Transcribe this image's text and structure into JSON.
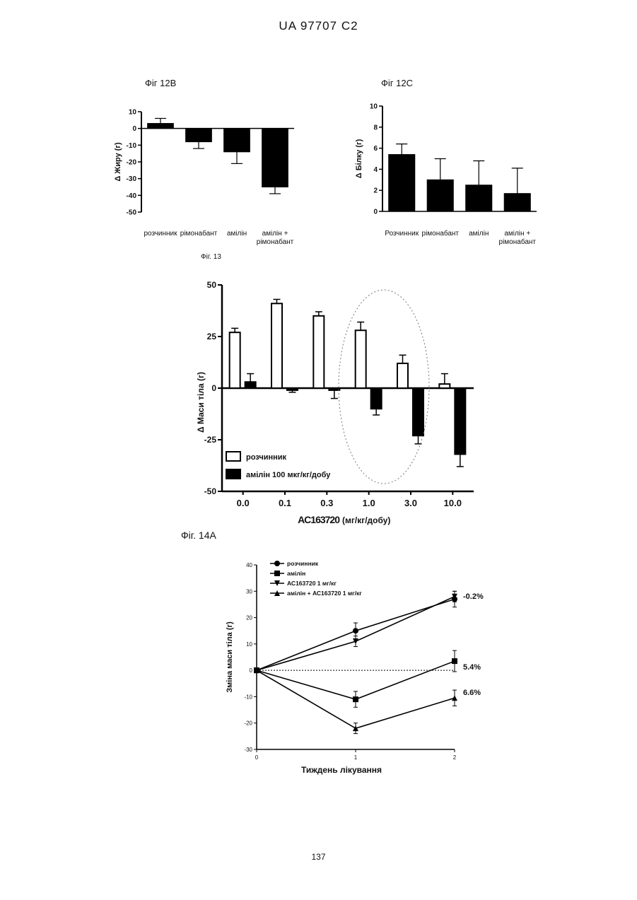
{
  "header": {
    "title": "UA   97707   C2"
  },
  "figure_labels": {
    "fig12b": "Фіг  12В",
    "fig12c": "Фіг  12С",
    "fig13": "Фіг. 13",
    "fig14a": "Фіг. 14А"
  },
  "page_number": "137",
  "chart_data": [
    {
      "id": "fig12b",
      "type": "bar",
      "ylabel": "Δ  Жиру (г)",
      "ylim": [
        -50,
        10
      ],
      "yticks": [
        10,
        0,
        -10,
        -20,
        -30,
        -40,
        -50
      ],
      "category_labels": [
        [
          "розчинник"
        ],
        [
          "рімонабант"
        ],
        [
          "амілін"
        ],
        [
          "амілін +",
          "рімонабант"
        ]
      ],
      "values": [
        3,
        -8,
        -14,
        -35
      ],
      "errors": [
        3,
        4,
        7,
        4
      ],
      "color": "#000000"
    },
    {
      "id": "fig12c",
      "type": "bar",
      "ylabel": "Δ  Білку (г)",
      "ylim": [
        0,
        10
      ],
      "yticks": [
        10,
        8,
        6,
        4,
        2,
        0
      ],
      "category_labels": [
        [
          "Розчинник"
        ],
        [
          "рімонабант"
        ],
        [
          "амілін"
        ],
        [
          "амілін +",
          "рімонабант"
        ]
      ],
      "values": [
        5.4,
        3.0,
        2.5,
        1.7
      ],
      "errors": [
        1.0,
        2.0,
        2.3,
        2.4
      ],
      "color": "#000000"
    },
    {
      "id": "fig13",
      "type": "bar",
      "ylabel": "Δ  Маси тіла (г)",
      "xlabel_main": "AC163720",
      "xlabel_unit": "(мг/кг/добу)",
      "ylim": [
        -50,
        50
      ],
      "yticks": [
        50,
        25,
        0,
        -25,
        -50
      ],
      "categories": [
        "0.0",
        "0.1",
        "0.3",
        "1.0",
        "3.0",
        "10.0"
      ],
      "series": [
        {
          "name": "розчинник",
          "fill": "#ffffff",
          "values": [
            27,
            41,
            35,
            28,
            12,
            2
          ],
          "errors": [
            2,
            2,
            2,
            4,
            4,
            5
          ]
        },
        {
          "name": "амілін 100 мкг/кг/добу",
          "fill": "#000000",
          "values": [
            3,
            -1,
            -1,
            -10,
            -23,
            -32
          ],
          "errors": [
            4,
            1,
            4,
            3,
            4,
            6
          ]
        }
      ]
    },
    {
      "id": "fig14a",
      "type": "line",
      "xlabel": "Тиждень лікування",
      "ylabel": "Зміна маси тіла (г)",
      "ylim": [
        -30,
        40
      ],
      "yticks": [
        40,
        30,
        20,
        10,
        0,
        -10,
        -20,
        -30
      ],
      "x": [
        0,
        1,
        2
      ],
      "series": [
        {
          "name": "розчинник",
          "marker": "circle",
          "values": [
            0,
            15,
            27
          ],
          "errors": [
            0,
            3,
            3
          ]
        },
        {
          "name": "амілін",
          "marker": "square",
          "values": [
            0,
            -11,
            3.5
          ],
          "errors": [
            0,
            3,
            4
          ]
        },
        {
          "name": "АС163720 1  мг/кг",
          "marker": "triangle-down",
          "values": [
            0,
            11,
            28
          ],
          "errors": [
            0,
            2,
            2
          ]
        },
        {
          "name": "амілін + АС163720 1 мг/кг",
          "marker": "triangle-up",
          "values": [
            0,
            -22,
            -10.5
          ],
          "errors": [
            0,
            2,
            3
          ]
        }
      ],
      "annotations": [
        "-0.2%",
        "5.4%",
        "6.6%"
      ]
    }
  ]
}
